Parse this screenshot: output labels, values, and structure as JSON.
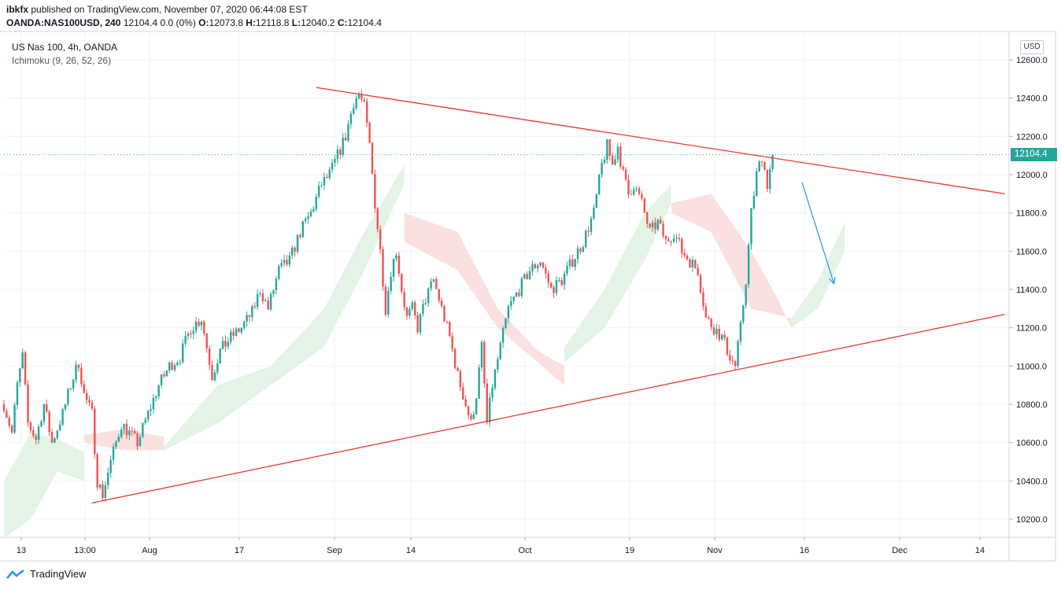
{
  "header": {
    "author": "ibkfx",
    "published_text": "published on TradingView.com, November 07, 2020 06:44:08 EST",
    "symbol": "OANDA:NAS100USD, 240",
    "last": "12104.4",
    "change": "0.0 (0%)",
    "open_label": "O:",
    "open": "12073.8",
    "high_label": "H:",
    "high": "12118.8",
    "low_label": "L:",
    "low": "12040.2",
    "close_label": "C:",
    "close": "12104.4"
  },
  "legend": {
    "series": "US Nas 100, 4h, OANDA",
    "indicator": "Ichimoku (9, 26, 52, 26)"
  },
  "currency": "USD",
  "last_price_label": "12104.4",
  "brand": "TradingView",
  "colors": {
    "up": "#26a69a",
    "down": "#ef5350",
    "cloud_bull": "#e3f3e5",
    "cloud_bear": "#fbe0e0",
    "trendline": "#e53935",
    "arrow": "#2196f3",
    "grid": "#f0f3fa"
  },
  "chart_data": {
    "type": "candlestick",
    "y_ticks": [
      "12600.0",
      "12400.0",
      "12200.0",
      "12000.0",
      "11800.0",
      "11600.0",
      "11400.0",
      "11200.0",
      "11000.0",
      "10800.0",
      "10600.0",
      "10400.0",
      "10200.0"
    ],
    "ylim": [
      10100,
      12750
    ],
    "x_ticks": [
      "13",
      "13:00",
      "Aug",
      "17",
      "Sep",
      "14",
      "Oct",
      "19",
      "Nov",
      "16",
      "Dec",
      "14"
    ],
    "last_price": 12104.4,
    "price_path": [
      [
        0,
        10800
      ],
      [
        3,
        10650
      ],
      [
        5,
        10900
      ],
      [
        7,
        11050
      ],
      [
        9,
        10700
      ],
      [
        12,
        10620
      ],
      [
        15,
        10800
      ],
      [
        18,
        10600
      ],
      [
        22,
        10750
      ],
      [
        25,
        10900
      ],
      [
        28,
        11020
      ],
      [
        30,
        10850
      ],
      [
        33,
        10750
      ],
      [
        35,
        10400
      ],
      [
        37,
        10330
      ],
      [
        40,
        10500
      ],
      [
        44,
        10700
      ],
      [
        47,
        10650
      ],
      [
        50,
        10600
      ],
      [
        54,
        10750
      ],
      [
        58,
        10900
      ],
      [
        62,
        11000
      ],
      [
        66,
        11050
      ],
      [
        70,
        11200
      ],
      [
        74,
        11250
      ],
      [
        78,
        10950
      ],
      [
        81,
        11080
      ],
      [
        85,
        11150
      ],
      [
        89,
        11200
      ],
      [
        93,
        11280
      ],
      [
        96,
        11400
      ],
      [
        99,
        11300
      ],
      [
        103,
        11500
      ],
      [
        107,
        11550
      ],
      [
        111,
        11700
      ],
      [
        115,
        11800
      ],
      [
        119,
        11950
      ],
      [
        122,
        12000
      ],
      [
        125,
        12100
      ],
      [
        128,
        12200
      ],
      [
        131,
        12380
      ],
      [
        133,
        12420
      ],
      [
        135,
        12350
      ],
      [
        137,
        12150
      ],
      [
        139,
        11850
      ],
      [
        141,
        11600
      ],
      [
        143,
        11300
      ],
      [
        145,
        11500
      ],
      [
        147,
        11600
      ],
      [
        149,
        11400
      ],
      [
        151,
        11250
      ],
      [
        153,
        11300
      ],
      [
        155,
        11200
      ],
      [
        158,
        11350
      ],
      [
        161,
        11450
      ],
      [
        164,
        11300
      ],
      [
        167,
        11150
      ],
      [
        170,
        10950
      ],
      [
        173,
        10800
      ],
      [
        175,
        10700
      ],
      [
        177,
        10850
      ],
      [
        179,
        11100
      ],
      [
        181,
        10700
      ],
      [
        183,
        10900
      ],
      [
        186,
        11100
      ],
      [
        189,
        11300
      ],
      [
        193,
        11400
      ],
      [
        197,
        11500
      ],
      [
        201,
        11550
      ],
      [
        205,
        11400
      ],
      [
        209,
        11450
      ],
      [
        213,
        11550
      ],
      [
        217,
        11650
      ],
      [
        221,
        11800
      ],
      [
        224,
        12050
      ],
      [
        226,
        12150
      ],
      [
        228,
        12050
      ],
      [
        230,
        12150
      ],
      [
        232,
        12000
      ],
      [
        234,
        11900
      ],
      [
        236,
        11950
      ],
      [
        239,
        11850
      ],
      [
        242,
        11700
      ],
      [
        245,
        11750
      ],
      [
        248,
        11650
      ],
      [
        251,
        11700
      ],
      [
        254,
        11600
      ],
      [
        257,
        11550
      ],
      [
        260,
        11500
      ],
      [
        263,
        11250
      ],
      [
        266,
        11200
      ],
      [
        269,
        11150
      ],
      [
        272,
        11050
      ],
      [
        274,
        11000
      ],
      [
        276,
        11200
      ],
      [
        278,
        11450
      ],
      [
        280,
        11800
      ],
      [
        282,
        12000
      ],
      [
        284,
        12100
      ],
      [
        286,
        11950
      ],
      [
        288,
        12104
      ]
    ],
    "cloud_segments": [
      {
        "kind": "bull",
        "points": [
          [
            0,
            10100
          ],
          [
            0,
            10400
          ],
          [
            10,
            10650
          ],
          [
            20,
            10620
          ],
          [
            30,
            10550
          ],
          [
            30,
            10400
          ],
          [
            20,
            10450
          ],
          [
            10,
            10200
          ]
        ]
      },
      {
        "kind": "bear",
        "points": [
          [
            30,
            10640
          ],
          [
            45,
            10670
          ],
          [
            60,
            10630
          ],
          [
            60,
            10560
          ],
          [
            45,
            10560
          ],
          [
            30,
            10600
          ]
        ]
      },
      {
        "kind": "bull",
        "points": [
          [
            60,
            10580
          ],
          [
            80,
            10900
          ],
          [
            100,
            11000
          ],
          [
            120,
            11300
          ],
          [
            135,
            11700
          ],
          [
            150,
            12050
          ],
          [
            150,
            11950
          ],
          [
            135,
            11500
          ],
          [
            120,
            11100
          ],
          [
            100,
            10900
          ],
          [
            80,
            10700
          ],
          [
            60,
            10560
          ]
        ]
      },
      {
        "kind": "bear",
        "points": [
          [
            150,
            11800
          ],
          [
            170,
            11700
          ],
          [
            185,
            11300
          ],
          [
            200,
            11080
          ],
          [
            210,
            11000
          ],
          [
            210,
            10900
          ],
          [
            200,
            11020
          ],
          [
            185,
            11200
          ],
          [
            170,
            11500
          ],
          [
            150,
            11650
          ]
        ]
      },
      {
        "kind": "bull",
        "points": [
          [
            210,
            11100
          ],
          [
            225,
            11400
          ],
          [
            240,
            11800
          ],
          [
            250,
            11950
          ],
          [
            250,
            11850
          ],
          [
            240,
            11550
          ],
          [
            225,
            11200
          ],
          [
            210,
            11020
          ]
        ]
      },
      {
        "kind": "bear",
        "points": [
          [
            250,
            11850
          ],
          [
            265,
            11900
          ],
          [
            280,
            11600
          ],
          [
            290,
            11350
          ],
          [
            295,
            11200
          ],
          [
            295,
            11250
          ],
          [
            280,
            11300
          ],
          [
            265,
            11700
          ],
          [
            250,
            11800
          ]
        ]
      },
      {
        "kind": "bull",
        "points": [
          [
            295,
            11250
          ],
          [
            305,
            11450
          ],
          [
            315,
            11750
          ],
          [
            315,
            11600
          ],
          [
            305,
            11300
          ],
          [
            295,
            11200
          ]
        ]
      }
    ],
    "trendlines": [
      {
        "from": [
          33,
          10285
        ],
        "to": [
          375,
          11270
        ]
      },
      {
        "from": [
          117,
          12455
        ],
        "to": [
          375,
          11900
        ]
      }
    ],
    "arrow": {
      "from": [
        299,
        11960
      ],
      "to": [
        311,
        11430
      ]
    },
    "x_count": 375
  }
}
